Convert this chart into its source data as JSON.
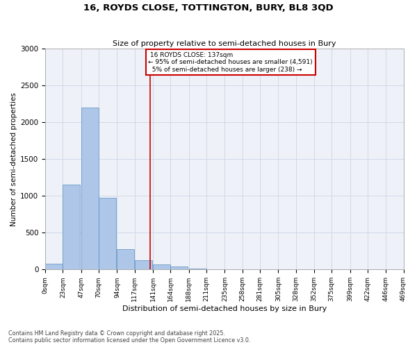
{
  "title_line1": "16, ROYDS CLOSE, TOTTINGTON, BURY, BL8 3QD",
  "title_line2": "Size of property relative to semi-detached houses in Bury",
  "xlabel": "Distribution of semi-detached houses by size in Bury",
  "ylabel": "Number of semi-detached properties",
  "property_size": 137,
  "property_label": "16 ROYDS CLOSE: 137sqm",
  "pct_smaller": 95,
  "n_smaller": 4591,
  "pct_larger": 5,
  "n_larger": 238,
  "bin_edges": [
    0,
    23,
    47,
    70,
    94,
    117,
    141,
    164,
    188,
    211,
    235,
    258,
    281,
    305,
    328,
    352,
    375,
    399,
    422,
    446,
    469
  ],
  "bar_heights": [
    75,
    1150,
    2200,
    975,
    275,
    125,
    65,
    40,
    10,
    0,
    0,
    0,
    0,
    0,
    0,
    0,
    0,
    0,
    0,
    0
  ],
  "bar_color": "#aec6e8",
  "bar_edge_color": "#5a8fc0",
  "vline_color": "#cc0000",
  "vline_x": 137,
  "annotation_box_color": "#cc0000",
  "ylim": [
    0,
    3000
  ],
  "yticks": [
    0,
    500,
    1000,
    1500,
    2000,
    2500,
    3000
  ],
  "grid_color": "#d0d8e8",
  "bg_color": "#eef2f8",
  "footer_line1": "Contains HM Land Registry data © Crown copyright and database right 2025.",
  "footer_line2": "Contains public sector information licensed under the Open Government Licence v3.0."
}
